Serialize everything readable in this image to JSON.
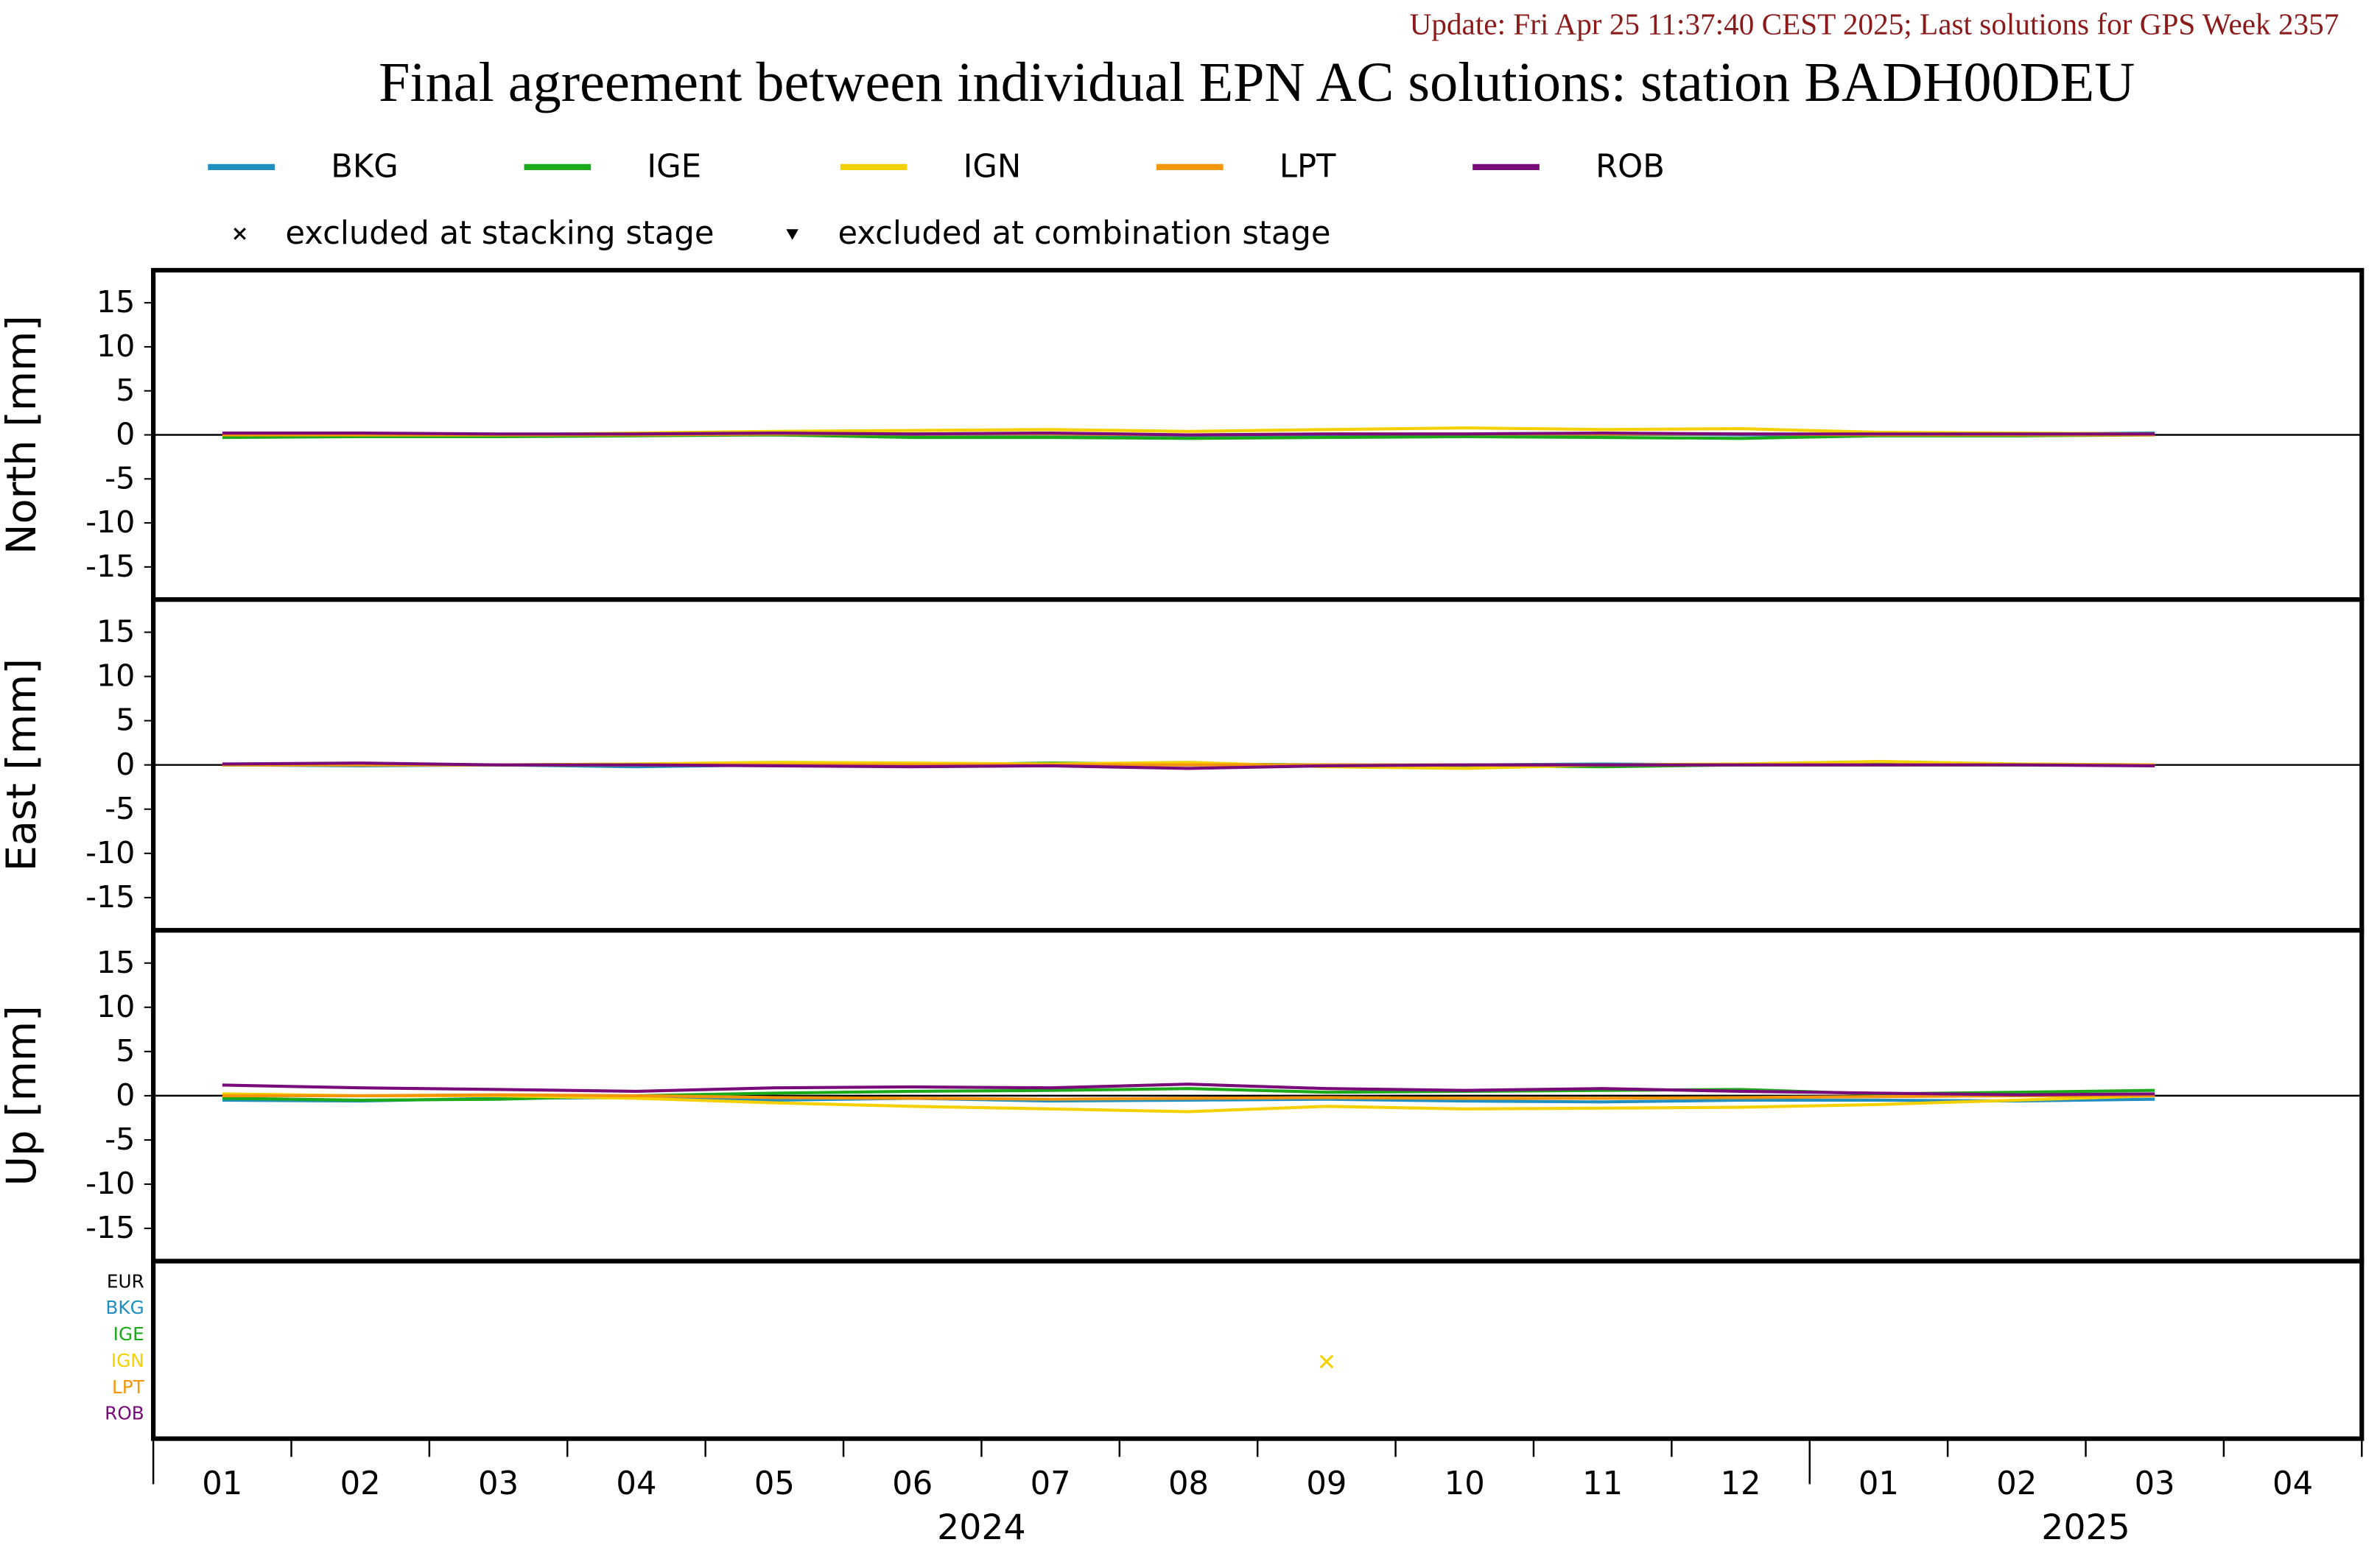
{
  "header": {
    "update": "Update: Fri Apr 25 11:37:40 CEST 2025; Last solutions for GPS Week 2357",
    "title": "Final agreement between individual EPN AC solutions: station BADH00DEU"
  },
  "series": [
    {
      "name": "BKG",
      "color": "#1f8fc0"
    },
    {
      "name": "IGE",
      "color": "#1aaa1a"
    },
    {
      "name": "IGN",
      "color": "#f5d000"
    },
    {
      "name": "LPT",
      "color": "#f5960a"
    },
    {
      "name": "ROB",
      "color": "#7a0a7a"
    }
  ],
  "markers": {
    "stacking": "excluded at stacking stage",
    "combination": "excluded at combination stage"
  },
  "x_axis": {
    "categories": [
      "01",
      "02",
      "03",
      "04",
      "05",
      "06",
      "07",
      "08",
      "09",
      "10",
      "11",
      "12",
      "01",
      "02",
      "03",
      "04"
    ],
    "years": [
      "2024",
      "2025"
    ]
  },
  "chart_data": [
    {
      "type": "line",
      "ylabel": "North [mm]",
      "ylim": [
        -18.7,
        18.7
      ],
      "yticks": [
        -15,
        -10,
        -5,
        0,
        5,
        10,
        15
      ],
      "values": [
        [
          0.1,
          -0.1,
          0,
          0.1,
          0,
          0.1,
          0,
          -0.1,
          0,
          0,
          0.1,
          0,
          0,
          0.1,
          0.2,
          null
        ],
        [
          -0.3,
          -0.2,
          -0.2,
          -0.1,
          0,
          -0.3,
          -0.3,
          -0.4,
          -0.3,
          -0.2,
          -0.3,
          -0.4,
          -0.1,
          -0.1,
          0,
          null
        ],
        [
          0.1,
          0,
          0,
          0.2,
          0.4,
          0.5,
          0.6,
          0.4,
          0.6,
          0.8,
          0.6,
          0.7,
          0.3,
          0.2,
          0.1,
          null
        ],
        [
          0,
          0,
          0,
          0,
          0.1,
          0.1,
          0.1,
          0,
          0.1,
          0.1,
          0.1,
          0.1,
          0,
          0,
          0,
          null
        ],
        [
          0.2,
          0.2,
          0.1,
          0.1,
          0.2,
          0.1,
          0.2,
          0,
          0.1,
          0.1,
          0.2,
          0.1,
          0.1,
          0.1,
          0.1,
          null
        ]
      ]
    },
    {
      "type": "line",
      "ylabel": "East [mm]",
      "ylim": [
        -18.7,
        18.7
      ],
      "yticks": [
        -15,
        -10,
        -5,
        0,
        5,
        10,
        15
      ],
      "values": [
        [
          0,
          -0.1,
          0,
          -0.2,
          0,
          0,
          0.1,
          0,
          0,
          0,
          0.1,
          0,
          0,
          0.1,
          0,
          null
        ],
        [
          0,
          0.1,
          0,
          0.1,
          0.1,
          0,
          0.2,
          0.1,
          0,
          -0.1,
          -0.2,
          0,
          0.1,
          0,
          0,
          null
        ],
        [
          0,
          0,
          0,
          0.1,
          0.3,
          0.2,
          0.1,
          0.3,
          -0.2,
          -0.4,
          0,
          0.1,
          0.4,
          0.1,
          0,
          null
        ],
        [
          0,
          0,
          0,
          0,
          0,
          0,
          0,
          0,
          0,
          0,
          0,
          0,
          0,
          0,
          0,
          null
        ],
        [
          0.1,
          0.2,
          0,
          0,
          -0.1,
          -0.2,
          -0.1,
          -0.4,
          -0.1,
          0,
          0,
          0,
          0,
          0,
          -0.1,
          null
        ]
      ]
    },
    {
      "type": "line",
      "ylabel": "Up [mm]",
      "ylim": [
        -18.7,
        18.7
      ],
      "yticks": [
        -15,
        -10,
        -5,
        0,
        5,
        10,
        15
      ],
      "values": [
        [
          -0.5,
          -0.6,
          -0.3,
          -0.2,
          -0.5,
          -0.3,
          -0.6,
          -0.5,
          -0.4,
          -0.6,
          -0.7,
          -0.5,
          -0.5,
          -0.6,
          -0.4,
          null
        ],
        [
          -0.3,
          -0.5,
          -0.4,
          0,
          0.3,
          0.5,
          0.6,
          0.8,
          0.4,
          0.5,
          0.6,
          0.7,
          0.2,
          0.4,
          0.6,
          null
        ],
        [
          0.2,
          0,
          0,
          -0.3,
          -0.8,
          -1.2,
          -1.5,
          -1.8,
          -1.2,
          -1.5,
          -1.4,
          -1.3,
          -1,
          -0.5,
          0,
          null
        ],
        [
          0,
          0,
          0.1,
          0,
          -0.2,
          -0.3,
          -0.4,
          -0.3,
          -0.2,
          -0.3,
          -0.3,
          -0.2,
          -0.1,
          0,
          0,
          null
        ],
        [
          1.2,
          0.9,
          0.7,
          0.5,
          0.9,
          1,
          0.9,
          1.3,
          0.8,
          0.6,
          0.8,
          0.5,
          0.3,
          0.1,
          0.2,
          null
        ]
      ]
    },
    {
      "type": "exclusion",
      "rows": [
        "EUR",
        "BKG",
        "IGE",
        "IGN",
        "LPT",
        "ROB"
      ],
      "points": [
        {
          "row": "IGN",
          "x": "2024-09",
          "stage": "stacking"
        }
      ]
    }
  ]
}
